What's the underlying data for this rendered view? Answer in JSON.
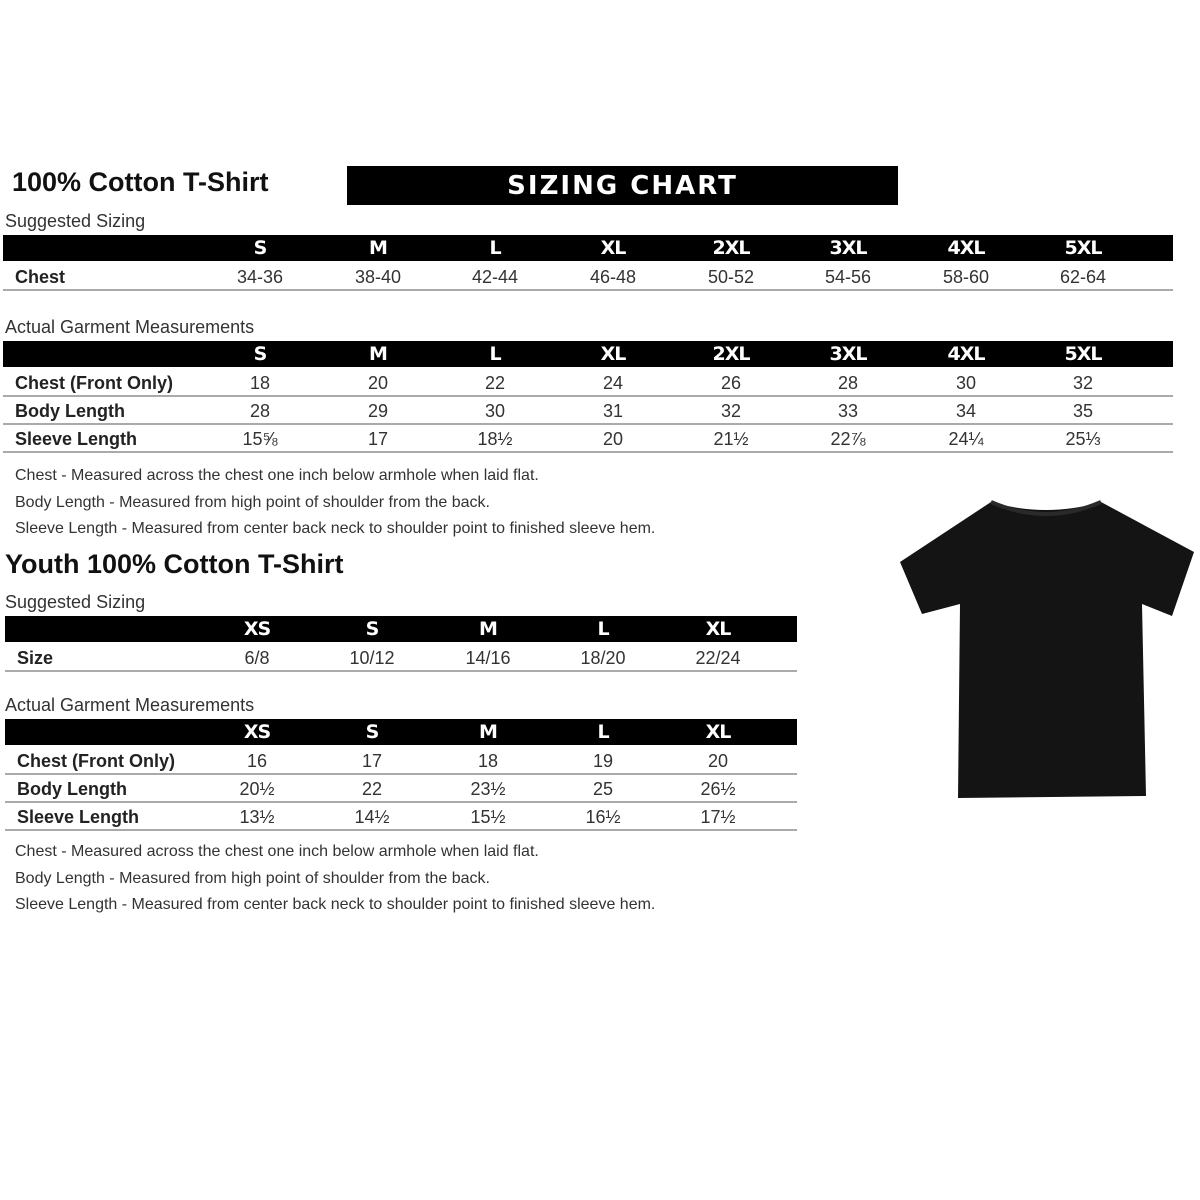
{
  "adult": {
    "title": "100% Cotton T-Shirt",
    "banner": "SIZING CHART",
    "suggested": {
      "label": "Suggested Sizing",
      "sizes": [
        "S",
        "M",
        "L",
        "XL",
        "2XL",
        "3XL",
        "4XL",
        "5XL"
      ],
      "rows": [
        {
          "label": "Chest",
          "values": [
            "34-36",
            "38-40",
            "42-44",
            "46-48",
            "50-52",
            "54-56",
            "58-60",
            "62-64"
          ]
        }
      ]
    },
    "actual": {
      "label": "Actual Garment Measurements",
      "sizes": [
        "S",
        "M",
        "L",
        "XL",
        "2XL",
        "3XL",
        "4XL",
        "5XL"
      ],
      "rows": [
        {
          "label": "Chest (Front Only)",
          "values": [
            "18",
            "20",
            "22",
            "24",
            "26",
            "28",
            "30",
            "32"
          ]
        },
        {
          "label": "Body Length",
          "values": [
            "28",
            "29",
            "30",
            "31",
            "32",
            "33",
            "34",
            "35"
          ]
        },
        {
          "label": "Sleeve Length",
          "values": [
            "15⅝",
            "17",
            "18½",
            "20",
            "21½",
            "22⅞",
            "24¼",
            "25⅓"
          ]
        }
      ]
    },
    "notes": [
      "Chest - Measured across the chest one inch below armhole when laid flat.",
      "Body Length - Measured from high point of shoulder from the back.",
      "Sleeve Length - Measured from center back neck to shoulder point to finished sleeve hem."
    ]
  },
  "youth": {
    "title": "Youth 100% Cotton T-Shirt",
    "suggested": {
      "label": "Suggested Sizing",
      "sizes": [
        "XS",
        "S",
        "M",
        "L",
        "XL"
      ],
      "rows": [
        {
          "label": "Size",
          "values": [
            "6/8",
            "10/12",
            "14/16",
            "18/20",
            "22/24"
          ]
        }
      ]
    },
    "actual": {
      "label": "Actual Garment Measurements",
      "sizes": [
        "XS",
        "S",
        "M",
        "L",
        "XL"
      ],
      "rows": [
        {
          "label": "Chest (Front Only)",
          "values": [
            "16",
            "17",
            "18",
            "19",
            "20"
          ]
        },
        {
          "label": "Body Length",
          "values": [
            "20½",
            "22",
            "23½",
            "25",
            "26½"
          ]
        },
        {
          "label": "Sleeve Length",
          "values": [
            "13½",
            "14½",
            "15½",
            "16½",
            "17½"
          ]
        }
      ]
    },
    "notes": [
      "Chest - Measured across the chest one inch below armhole when laid flat.",
      "Body Length - Measured from high point of shoulder from the back.",
      "Sleeve Length - Measured from center back neck to shoulder point to finished sleeve hem."
    ]
  },
  "image": {
    "icon": "t-shirt-icon",
    "color": "#141414"
  }
}
